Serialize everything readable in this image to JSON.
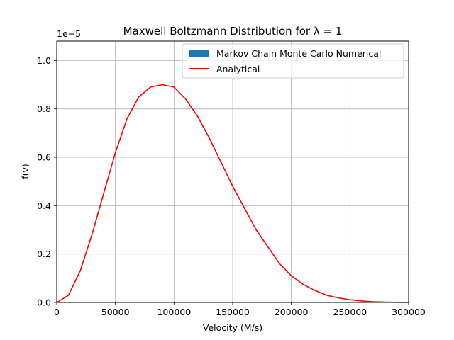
{
  "chart_data": {
    "type": "line",
    "title": "Maxwell Boltzmann Distribution for λ = 1",
    "xlabel": "Velocity (M/s)",
    "ylabel": "f(v)",
    "y_offset_label": "1e−5",
    "xlim": [
      0,
      300000
    ],
    "ylim": [
      0,
      1.08
    ],
    "x_ticks": [
      0,
      50000,
      100000,
      150000,
      200000,
      250000,
      300000
    ],
    "x_tick_labels": [
      "0",
      "50000",
      "100000",
      "150000",
      "200000",
      "250000",
      "300000"
    ],
    "y_ticks": [
      0.0,
      0.2,
      0.4,
      0.6,
      0.8,
      1.0
    ],
    "y_tick_labels": [
      "0.0",
      "0.2",
      "0.4",
      "0.6",
      "0.8",
      "1.0"
    ],
    "grid": true,
    "legend_position": "top-right",
    "series": [
      {
        "name": "Markov Chain Monte Carlo Numerical",
        "kind": "histogram",
        "color": "#1f77b4",
        "values": []
      },
      {
        "name": "Analytical",
        "kind": "line",
        "color": "#ff0000",
        "x": [
          0,
          10000,
          20000,
          30000,
          40000,
          50000,
          60000,
          70000,
          80000,
          90000,
          100000,
          110000,
          120000,
          130000,
          140000,
          150000,
          160000,
          170000,
          180000,
          190000,
          200000,
          210000,
          220000,
          230000,
          240000,
          250000,
          260000,
          270000,
          280000,
          290000,
          300000
        ],
        "y": [
          0.0,
          0.03,
          0.13,
          0.28,
          0.45,
          0.62,
          0.76,
          0.85,
          0.89,
          0.9,
          0.89,
          0.84,
          0.77,
          0.68,
          0.58,
          0.48,
          0.39,
          0.3,
          0.23,
          0.16,
          0.11,
          0.075,
          0.05,
          0.03,
          0.019,
          0.011,
          0.006,
          0.003,
          0.0015,
          0.0007,
          0.0003
        ]
      }
    ]
  }
}
